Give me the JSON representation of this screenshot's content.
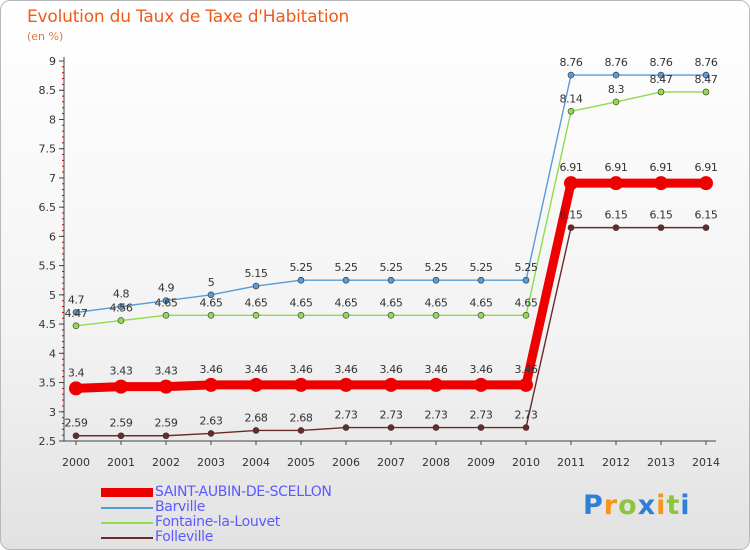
{
  "chart_data": {
    "type": "line",
    "title": "Evolution du Taux de Taxe d'Habitation",
    "ylabel": "(en %)",
    "xlabel": "",
    "ylim": [
      2.5,
      9
    ],
    "yticks": [
      "2.5",
      "3",
      "3.5",
      "4",
      "4.5",
      "5",
      "5.5",
      "6",
      "6.5",
      "7",
      "7.5",
      "8",
      "8.5",
      "9"
    ],
    "x": [
      "2000",
      "2001",
      "2002",
      "2003",
      "2004",
      "2005",
      "2006",
      "2007",
      "2008",
      "2009",
      "2010",
      "2011",
      "2012",
      "2013",
      "2014"
    ],
    "grid": false,
    "legend_position": "bottom-left",
    "series": [
      {
        "name": "SAINT-AUBIN-DE-SCELLON",
        "color": "#ee0000",
        "values": [
          3.4,
          3.43,
          3.43,
          3.46,
          3.46,
          3.46,
          3.46,
          3.46,
          3.46,
          3.46,
          3.46,
          6.91,
          6.91,
          6.91,
          6.91
        ],
        "labels": [
          "3.4",
          "3.43",
          "3.43",
          "3.46",
          "3.46",
          "3.46",
          "3.46",
          "3.46",
          "3.46",
          "3.46",
          "3.46",
          "6.91",
          "6.91",
          "6.91",
          "6.91"
        ]
      },
      {
        "name": "Barville",
        "color": "#5b9bd5",
        "values": [
          4.7,
          4.8,
          4.9,
          5,
          5.15,
          5.25,
          5.25,
          5.25,
          5.25,
          5.25,
          5.25,
          8.76,
          8.76,
          8.76,
          8.76
        ],
        "labels": [
          "4.7",
          "4.8",
          "4.9",
          "5",
          "5.15",
          "5.25",
          "5.25",
          "5.25",
          "5.25",
          "5.25",
          "5.25",
          "8.76",
          "8.76",
          "8.76",
          "8.76"
        ]
      },
      {
        "name": "Fontaine-la-Louvet",
        "color": "#8fdc4c",
        "values": [
          4.47,
          4.56,
          4.65,
          4.65,
          4.65,
          4.65,
          4.65,
          4.65,
          4.65,
          4.65,
          4.65,
          8.14,
          8.3,
          8.47,
          8.47
        ],
        "labels": [
          "4.47",
          "4.56",
          "4.65",
          "4.65",
          "4.65",
          "4.65",
          "4.65",
          "4.65",
          "4.65",
          "4.65",
          "4.65",
          "8.14",
          "8.3",
          "8.47",
          "8.47"
        ]
      },
      {
        "name": "Folleville",
        "color": "#6b2a2a",
        "values": [
          2.59,
          2.59,
          2.59,
          2.63,
          2.68,
          2.68,
          2.73,
          2.73,
          2.73,
          2.73,
          2.73,
          6.15,
          6.15,
          6.15,
          6.15
        ],
        "labels": [
          "2.59",
          "2.59",
          "2.59",
          "2.63",
          "2.68",
          "2.68",
          "2.73",
          "2.73",
          "2.73",
          "2.73",
          "2.73",
          "6.15",
          "6.15",
          "6.15",
          "6.15"
        ]
      }
    ]
  },
  "brand": {
    "letters": [
      "P",
      "r",
      "o",
      "x",
      "i",
      "t",
      "i"
    ],
    "colors": [
      "#2f7fd6",
      "#f7941d",
      "#8cc63f",
      "#2f7fd6",
      "#f7941d",
      "#8cc63f",
      "#2f7fd6"
    ]
  }
}
